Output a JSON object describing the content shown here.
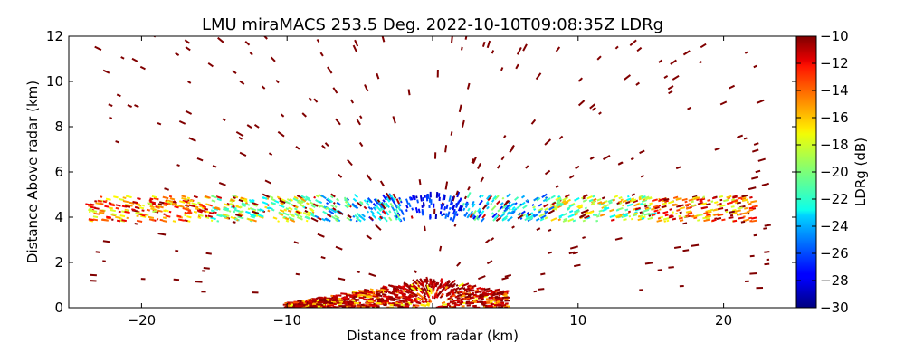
{
  "chart_data": {
    "type": "heatmap",
    "title": "LMU miraMACS 253.5 Deg. 2022-10-10T09:08:35Z  LDRg",
    "xlabel": "Distance from radar (km)",
    "ylabel": "Distance Above radar  (km)",
    "xlim": [
      -25,
      25
    ],
    "ylim": [
      0,
      12
    ],
    "x_ticks": [
      -20,
      -10,
      0,
      10,
      20
    ],
    "x_tick_labels": [
      "−20",
      "−10",
      "0",
      "10",
      "20"
    ],
    "y_ticks": [
      0,
      2,
      4,
      6,
      8,
      10,
      12
    ],
    "y_tick_labels": [
      "0",
      "2",
      "4",
      "6",
      "8",
      "10",
      "12"
    ],
    "grid": false,
    "colorbar": {
      "label": "LDRg (dB)",
      "range": [
        -30,
        -10
      ],
      "colormap": "jet",
      "ticks": [
        -30,
        -28,
        -26,
        -24,
        -22,
        -20,
        -18,
        -16,
        -14,
        -12,
        -10
      ],
      "tick_labels": [
        "−30",
        "−28",
        "−26",
        "−24",
        "−22",
        "−20",
        "−18",
        "−16",
        "−14",
        "−12",
        "−10"
      ]
    },
    "features": [
      {
        "type": "layer",
        "x_range": [
          -23.5,
          22
        ],
        "z_range": [
          3.6,
          5.0
        ],
        "ldr_range": [
          -29,
          -10
        ],
        "description": "melting layer band"
      },
      {
        "type": "ground_clutter",
        "x_range": [
          -10,
          5
        ],
        "z_range": [
          0,
          1.5
        ],
        "ldr_range": [
          -18,
          -10
        ]
      },
      {
        "type": "scattered_returns",
        "x_range": [
          -23.5,
          23
        ],
        "z_range": [
          0,
          12
        ],
        "ldr": -10
      }
    ]
  }
}
